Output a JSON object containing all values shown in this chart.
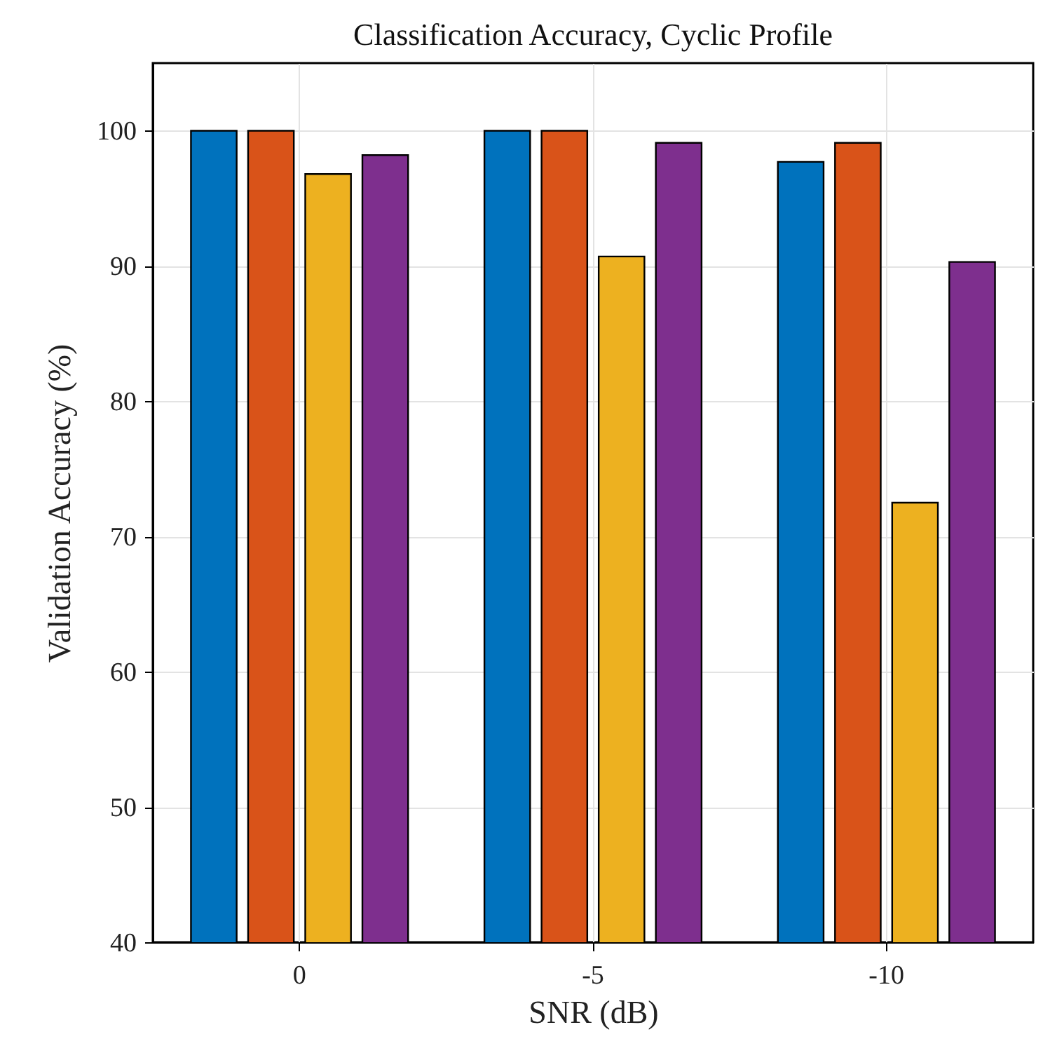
{
  "chart_data": {
    "type": "bar",
    "title": "Classification Accuracy, Cyclic Profile",
    "xlabel": "SNR (dB)",
    "ylabel": "Validation Accuracy (%)",
    "categories": [
      "0",
      "-5",
      "-10"
    ],
    "series": [
      {
        "color": "#0072bd",
        "values": [
          100,
          100,
          97.7
        ]
      },
      {
        "color": "#d95319",
        "values": [
          100,
          100,
          99.1
        ]
      },
      {
        "color": "#edb120",
        "values": [
          96.8,
          90.7,
          72.5
        ]
      },
      {
        "color": "#7e2f8e",
        "values": [
          98.2,
          99.1,
          90.3
        ]
      }
    ],
    "ylim": [
      40,
      105
    ],
    "yticks": [
      40,
      50,
      60,
      70,
      80,
      90,
      100
    ],
    "grid": true
  }
}
